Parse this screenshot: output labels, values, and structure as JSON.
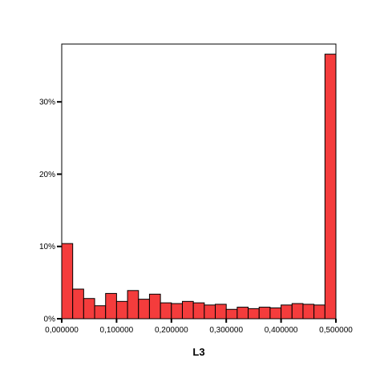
{
  "chart_data": {
    "type": "bar",
    "title": "",
    "xlabel": "L3",
    "ylabel": "",
    "x_range": [
      0,
      0.5
    ],
    "ylim": [
      0,
      38
    ],
    "bin_width": 0.02,
    "x_tick_values": [
      0,
      0.1,
      0.2,
      0.3,
      0.4,
      0.5
    ],
    "x_tick_labels": [
      "0,000000",
      "0,100000",
      "0,200000",
      "0,300000",
      "0,400000",
      "0,500000"
    ],
    "y_tick_values": [
      0,
      10,
      20,
      30
    ],
    "y_tick_labels": [
      "0%",
      "10%",
      "20%",
      "30%"
    ],
    "bin_starts": [
      0.0,
      0.02,
      0.04,
      0.06,
      0.08,
      0.1,
      0.12,
      0.14,
      0.16,
      0.18,
      0.2,
      0.22,
      0.24,
      0.26,
      0.28,
      0.3,
      0.32,
      0.34,
      0.36,
      0.38,
      0.4,
      0.42,
      0.44,
      0.46,
      0.48
    ],
    "values": [
      10.4,
      4.1,
      2.8,
      1.8,
      3.5,
      2.4,
      3.9,
      2.7,
      3.4,
      2.2,
      2.1,
      2.4,
      2.2,
      1.9,
      2.0,
      1.3,
      1.6,
      1.4,
      1.6,
      1.5,
      1.9,
      2.1,
      2.0,
      1.9,
      36.6
    ],
    "colors": {
      "bar_fill": "#f43c3c",
      "bar_stroke": "#000000"
    },
    "grid": false,
    "legend": "none"
  }
}
